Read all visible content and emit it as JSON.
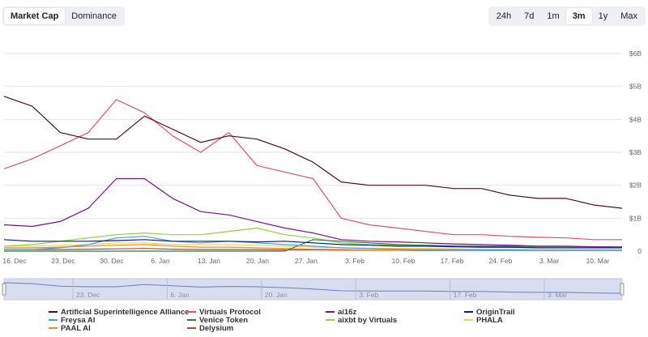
{
  "tabs": [
    {
      "label": "Market Cap",
      "active": true
    },
    {
      "label": "Dominance",
      "active": false
    }
  ],
  "range_buttons": [
    {
      "label": "24h",
      "active": false
    },
    {
      "label": "7d",
      "active": false
    },
    {
      "label": "1m",
      "active": false
    },
    {
      "label": "3m",
      "active": true
    },
    {
      "label": "1y",
      "active": false
    },
    {
      "label": "Max",
      "active": false
    }
  ],
  "navigator": {
    "x_tick_labels": [
      "23. Dec",
      "6. Jan",
      "20. Jan",
      "3. Feb",
      "17. Feb",
      "3. Mar"
    ]
  },
  "chart_data": {
    "type": "line",
    "title": "",
    "xlabel": "",
    "ylabel": "",
    "x_tick_labels": [
      "16. Dec",
      "23. Dec",
      "30. Dec",
      "6. Jan",
      "13. Jan",
      "20. Jan",
      "27. Jan",
      "3. Feb",
      "10. Feb",
      "17. Feb",
      "24. Feb",
      "3. Mar",
      "10. Mar"
    ],
    "y_tick_labels": [
      "0",
      "$1B",
      "$2B",
      "$3B",
      "$4B",
      "$5B",
      "$6B"
    ],
    "ylim": [
      0,
      6
    ],
    "y_unit": "B USD",
    "grid": true,
    "legend_position": "bottom",
    "x": [
      "2024-12-16",
      "2024-12-20",
      "2024-12-24",
      "2024-12-28",
      "2025-01-01",
      "2025-01-05",
      "2025-01-09",
      "2025-01-13",
      "2025-01-17",
      "2025-01-21",
      "2025-01-25",
      "2025-01-29",
      "2025-02-02",
      "2025-02-06",
      "2025-02-10",
      "2025-02-14",
      "2025-02-18",
      "2025-02-22",
      "2025-02-26",
      "2025-03-02",
      "2025-03-06",
      "2025-03-10",
      "2025-03-14"
    ],
    "series": [
      {
        "name": "Artificial Superintelligence Alliance",
        "color": "#4a0e1e",
        "values": [
          4.7,
          4.4,
          3.6,
          3.4,
          3.4,
          4.1,
          3.7,
          3.3,
          3.5,
          3.4,
          3.1,
          2.7,
          2.1,
          2.0,
          2.0,
          2.0,
          1.9,
          1.9,
          1.7,
          1.6,
          1.6,
          1.4,
          1.3
        ]
      },
      {
        "name": "Virtuals Protocol",
        "color": "#e8506a",
        "values": [
          2.5,
          2.8,
          3.2,
          3.6,
          4.6,
          4.2,
          3.5,
          3.0,
          3.6,
          2.6,
          2.4,
          2.2,
          1.0,
          0.8,
          0.7,
          0.6,
          0.5,
          0.5,
          0.45,
          0.42,
          0.4,
          0.35,
          0.35
        ]
      },
      {
        "name": "ai16z",
        "color": "#7b0f8a",
        "values": [
          0.8,
          0.75,
          0.9,
          1.3,
          2.2,
          2.2,
          1.6,
          1.2,
          1.1,
          0.9,
          0.7,
          0.55,
          0.35,
          0.3,
          0.28,
          0.25,
          0.22,
          0.2,
          0.18,
          0.15,
          0.15,
          0.13,
          0.12
        ]
      },
      {
        "name": "OriginTrail",
        "color": "#0a1a8c",
        "values": [
          0.35,
          0.3,
          0.3,
          0.3,
          0.32,
          0.35,
          0.3,
          0.3,
          0.3,
          0.28,
          0.3,
          0.25,
          0.2,
          0.18,
          0.15,
          0.15,
          0.13,
          0.12,
          0.12,
          0.1,
          0.1,
          0.1,
          0.1
        ]
      },
      {
        "name": "Freysa AI",
        "color": "#4aa0d8",
        "values": [
          0.05,
          0.05,
          0.1,
          0.2,
          0.4,
          0.45,
          0.3,
          0.25,
          0.3,
          0.25,
          0.2,
          0.15,
          0.1,
          0.08,
          0.06,
          0.05,
          0.05,
          0.04,
          0.04,
          0.03,
          0.03,
          0.03,
          0.03
        ]
      },
      {
        "name": "Venice Token",
        "color": "#2a7a52",
        "values": [
          0,
          0,
          0,
          0,
          0,
          0,
          0,
          0,
          0,
          0,
          0,
          0.35,
          0.3,
          0.25,
          0.2,
          0.18,
          0.16,
          0.15,
          0.15,
          0.14,
          0.14,
          0.13,
          0.13
        ]
      },
      {
        "name": "aixbt by Virtuals",
        "color": "#8ed63a",
        "values": [
          0.15,
          0.2,
          0.3,
          0.4,
          0.5,
          0.55,
          0.5,
          0.5,
          0.6,
          0.7,
          0.5,
          0.4,
          0.25,
          0.2,
          0.18,
          0.15,
          0.13,
          0.12,
          0.11,
          0.1,
          0.1,
          0.1,
          0.1
        ]
      },
      {
        "name": "PHALA",
        "color": "#f2d64a",
        "values": [
          0.15,
          0.15,
          0.18,
          0.2,
          0.25,
          0.25,
          0.2,
          0.2,
          0.2,
          0.18,
          0.15,
          0.12,
          0.1,
          0.09,
          0.08,
          0.08,
          0.07,
          0.06,
          0.06,
          0.05,
          0.05,
          0.05,
          0.05
        ]
      },
      {
        "name": "PAAL AI",
        "color": "#f08a2a",
        "values": [
          0.1,
          0.1,
          0.12,
          0.15,
          0.18,
          0.2,
          0.15,
          0.12,
          0.12,
          0.1,
          0.08,
          0.06,
          0.05,
          0.04,
          0.04,
          0.04,
          0.03,
          0.03,
          0.03,
          0.02,
          0.02,
          0.02,
          0.02
        ]
      },
      {
        "name": "Delysium",
        "color": "#a0522d",
        "values": [
          0.05,
          0.05,
          0.05,
          0.06,
          0.07,
          0.08,
          0.06,
          0.05,
          0.05,
          0.05,
          0.04,
          0.04,
          0.03,
          0.03,
          0.03,
          0.02,
          0.02,
          0.02,
          0.02,
          0.02,
          0.02,
          0.02,
          0.02
        ]
      }
    ]
  }
}
